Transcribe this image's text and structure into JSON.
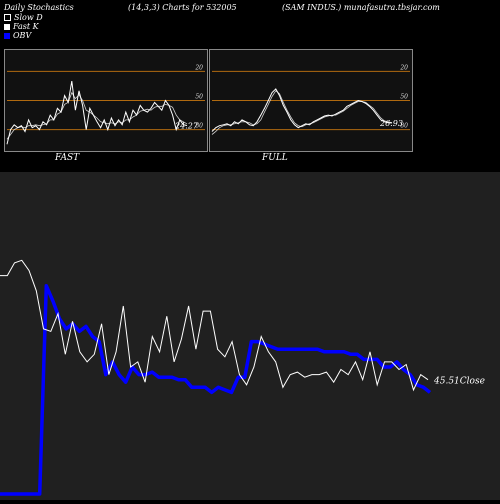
{
  "header": {
    "left": "Daily Stochastics",
    "params": "(14,3,3) Charts for 532005",
    "right": "(SAM INDUS.) munafasutra.tbsjar.com"
  },
  "legend": [
    {
      "label": "Slow  D",
      "color": "#000000"
    },
    {
      "label": "Fast K",
      "color": "#ffffff"
    },
    {
      "label": "OBV",
      "color": "#0000ff"
    }
  ],
  "chart_data": [
    {
      "type": "line",
      "title": "FAST",
      "ylim": [
        0,
        100
      ],
      "levels": [
        20,
        50,
        80
      ],
      "tick_labels": [
        "80",
        "50",
        "20"
      ],
      "last_value_label": "24.27",
      "series": [
        {
          "name": "Fast K",
          "values": [
            5,
            20,
            25,
            22,
            24,
            18,
            30,
            22,
            24,
            20,
            28,
            25,
            35,
            30,
            42,
            38,
            55,
            48,
            70,
            40,
            60,
            45,
            20,
            42,
            35,
            28,
            22,
            30,
            20,
            32,
            24,
            30,
            25,
            38,
            28,
            40,
            35,
            45,
            40,
            38,
            42,
            48,
            44,
            40,
            50,
            45,
            35,
            20,
            30,
            25,
            24.27
          ]
        },
        {
          "name": "Slow D",
          "values": [
            10,
            15,
            20,
            22,
            23,
            22,
            24,
            24,
            25,
            24,
            25,
            26,
            30,
            30,
            36,
            38,
            46,
            48,
            58,
            52,
            56,
            50,
            40,
            38,
            35,
            32,
            28,
            27,
            26,
            27,
            26,
            28,
            27,
            30,
            30,
            33,
            35,
            39,
            40,
            41,
            40,
            43,
            44,
            44,
            46,
            45,
            43,
            35,
            30,
            28,
            26
          ]
        }
      ]
    },
    {
      "type": "line",
      "title": "FULL",
      "ylim": [
        0,
        100
      ],
      "levels": [
        20,
        50,
        80
      ],
      "tick_labels": [
        "80",
        "50",
        "20"
      ],
      "last_value_label": "26.93",
      "series": [
        {
          "name": "Fast K",
          "values": [
            18,
            22,
            24,
            25,
            26,
            24,
            28,
            26,
            30,
            28,
            25,
            24,
            28,
            35,
            42,
            50,
            58,
            62,
            55,
            45,
            38,
            30,
            25,
            22,
            24,
            26,
            25,
            28,
            30,
            32,
            34,
            35,
            34,
            36,
            38,
            40,
            44,
            46,
            48,
            50,
            49,
            47,
            44,
            40,
            35,
            30,
            28,
            27,
            26.93
          ]
        },
        {
          "name": "Slow D",
          "values": [
            15,
            18,
            22,
            24,
            25,
            25,
            26,
            27,
            28,
            28,
            27,
            25,
            26,
            30,
            38,
            46,
            54,
            60,
            57,
            48,
            40,
            33,
            27,
            24,
            23,
            25,
            26,
            27,
            29,
            31,
            33,
            34,
            35,
            35,
            37,
            39,
            42,
            45,
            47,
            49,
            49,
            48,
            45,
            42,
            37,
            32,
            29,
            28,
            27
          ]
        }
      ]
    },
    {
      "type": "line",
      "title": "",
      "last_value_label": "45.51Close",
      "series": [
        {
          "name": "Close",
          "values": [
            86,
            86,
            91,
            92,
            88,
            80,
            65,
            64,
            71,
            55,
            68,
            56,
            52,
            55,
            67,
            47,
            56,
            74,
            50,
            52,
            44,
            62,
            56,
            70,
            52,
            61,
            74,
            57,
            72,
            72,
            57,
            54,
            60,
            47,
            43,
            50,
            62,
            56,
            52,
            42,
            47,
            48,
            46,
            47,
            47,
            48,
            44,
            49,
            47,
            52,
            45,
            56,
            43,
            52,
            52,
            49,
            51,
            41,
            47,
            45
          ]
        },
        {
          "name": "OBV",
          "values": [
            0,
            0,
            0,
            0,
            0,
            0,
            0,
            82,
            76,
            69,
            65,
            67,
            64,
            66,
            62,
            60,
            47,
            52,
            47,
            44,
            50,
            47,
            47,
            48,
            46,
            46,
            46,
            45,
            45,
            42,
            42,
            42,
            40,
            42,
            41,
            40,
            46,
            46,
            60,
            60,
            59,
            58,
            57,
            57,
            57,
            57,
            57,
            57,
            57,
            56,
            56,
            56,
            56,
            55,
            55,
            53,
            53,
            53,
            50,
            50,
            52,
            49,
            47,
            43,
            42,
            40
          ]
        }
      ]
    }
  ]
}
